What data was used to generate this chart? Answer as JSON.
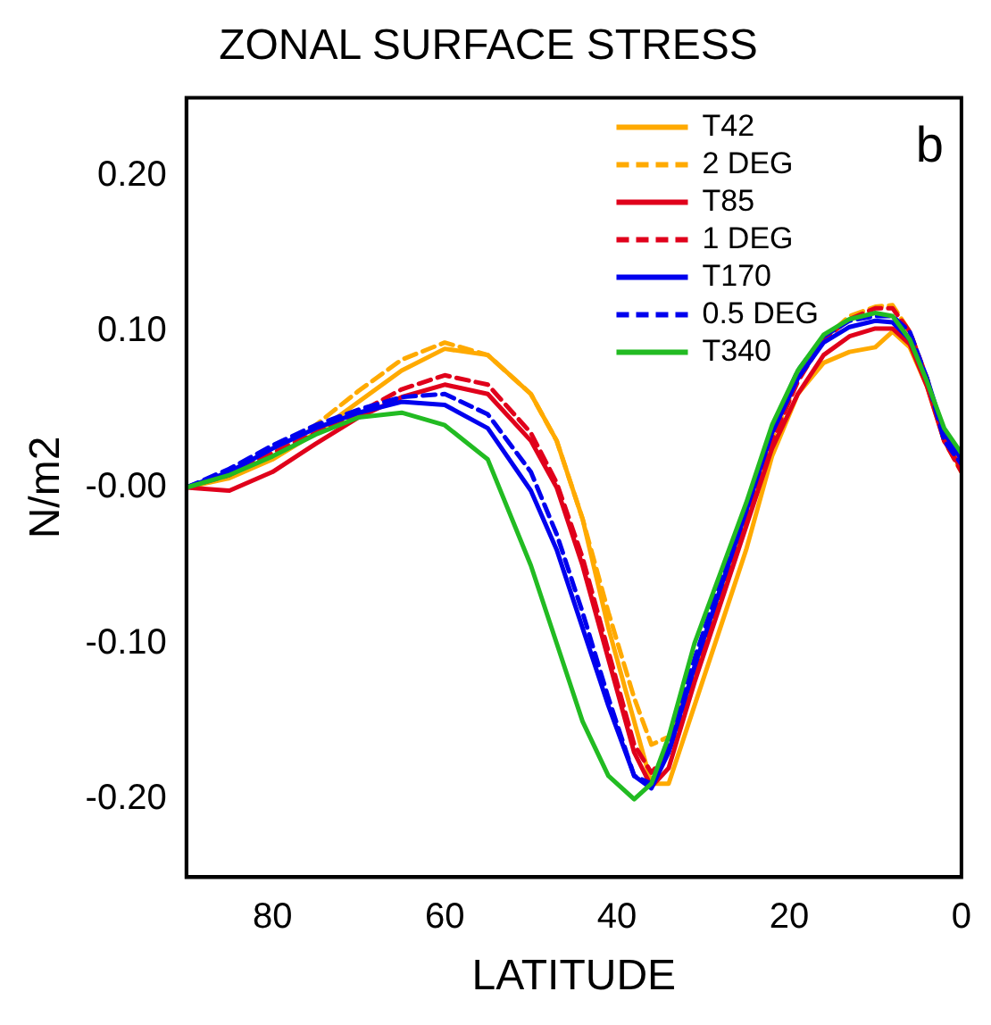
{
  "chart_data": {
    "type": "line",
    "title": "ZONAL SURFACE STRESS",
    "xlabel": "LATITUDE",
    "ylabel": "N/m2",
    "annotations": [
      "b"
    ],
    "x": [
      90,
      85,
      80,
      75,
      70,
      65,
      60,
      55,
      50,
      47,
      44,
      41,
      38,
      36,
      34,
      31,
      28,
      25,
      22,
      19,
      16,
      13,
      10,
      8,
      6,
      4,
      2,
      0
    ],
    "series": [
      {
        "name": "T42",
        "color": "#ffaa00",
        "line_style": "solid",
        "values": [
          0,
          0.006,
          0.018,
          0.035,
          0.055,
          0.075,
          0.089,
          0.085,
          0.06,
          0.03,
          -0.02,
          -0.09,
          -0.15,
          -0.19,
          -0.19,
          -0.14,
          -0.09,
          -0.04,
          0.02,
          0.06,
          0.08,
          0.087,
          0.09,
          0.1,
          0.09,
          0.065,
          0.03,
          0.015
        ]
      },
      {
        "name": "2 DEG",
        "color": "#ffaa00",
        "line_style": "dashed",
        "values": [
          0,
          0.01,
          0.022,
          0.04,
          0.062,
          0.082,
          0.093,
          0.085,
          0.06,
          0.03,
          -0.02,
          -0.08,
          -0.135,
          -0.165,
          -0.16,
          -0.12,
          -0.07,
          -0.02,
          0.03,
          0.07,
          0.095,
          0.11,
          0.116,
          0.117,
          0.1,
          0.07,
          0.03,
          0.01
        ]
      },
      {
        "name": "T85",
        "color": "#e0001b",
        "line_style": "solid",
        "values": [
          0,
          -0.002,
          0.01,
          0.028,
          0.045,
          0.058,
          0.066,
          0.06,
          0.03,
          0,
          -0.05,
          -0.11,
          -0.17,
          -0.192,
          -0.18,
          -0.125,
          -0.075,
          -0.025,
          0.025,
          0.06,
          0.085,
          0.097,
          0.102,
          0.102,
          0.092,
          0.065,
          0.03,
          0.012
        ]
      },
      {
        "name": "1 DEG",
        "color": "#e0001b",
        "line_style": "dashed",
        "values": [
          0,
          0.008,
          0.022,
          0.035,
          0.048,
          0.063,
          0.072,
          0.066,
          0.035,
          0.003,
          -0.045,
          -0.105,
          -0.165,
          -0.183,
          -0.17,
          -0.12,
          -0.07,
          -0.02,
          0.03,
          0.068,
          0.095,
          0.108,
          0.115,
          0.115,
          0.1,
          0.07,
          0.03,
          0.01
        ]
      },
      {
        "name": "T170",
        "color": "#0000ee",
        "line_style": "solid",
        "values": [
          0,
          0.01,
          0.025,
          0.038,
          0.048,
          0.055,
          0.053,
          0.038,
          -0.002,
          -0.04,
          -0.09,
          -0.14,
          -0.185,
          -0.193,
          -0.17,
          -0.115,
          -0.065,
          -0.015,
          0.035,
          0.07,
          0.093,
          0.103,
          0.107,
          0.106,
          0.095,
          0.07,
          0.035,
          0.018
        ]
      },
      {
        "name": "0.5 DEG",
        "color": "#0000ee",
        "line_style": "dashed",
        "values": [
          0,
          0.012,
          0.027,
          0.04,
          0.05,
          0.058,
          0.06,
          0.047,
          0.01,
          -0.03,
          -0.08,
          -0.135,
          -0.185,
          -0.19,
          -0.165,
          -0.11,
          -0.06,
          -0.012,
          0.038,
          0.075,
          0.097,
          0.107,
          0.11,
          0.11,
          0.1,
          0.07,
          0.03,
          0.015
        ]
      },
      {
        "name": "T340",
        "color": "#22bb22",
        "line_style": "solid",
        "values": [
          0,
          0.008,
          0.02,
          0.034,
          0.045,
          0.048,
          0.04,
          0.018,
          -0.05,
          -0.1,
          -0.15,
          -0.185,
          -0.2,
          -0.19,
          -0.16,
          -0.1,
          -0.055,
          -0.01,
          0.04,
          0.075,
          0.098,
          0.108,
          0.112,
          0.11,
          0.095,
          0.068,
          0.038,
          0.022
        ]
      }
    ],
    "xlim": [
      90,
      0
    ],
    "xticks": [
      80,
      60,
      40,
      20,
      0
    ],
    "ylim": [
      -0.25,
      0.25
    ],
    "yticks": [
      {
        "value": -0.2,
        "label": "-0.20"
      },
      {
        "value": -0.1,
        "label": "-0.10"
      },
      {
        "value": 0,
        "label": "-0.00"
      },
      {
        "value": 0.1,
        "label": "0.10"
      },
      {
        "value": 0.2,
        "label": "0.20"
      }
    ],
    "grid": false,
    "legend": "top right",
    "marker": "none"
  }
}
